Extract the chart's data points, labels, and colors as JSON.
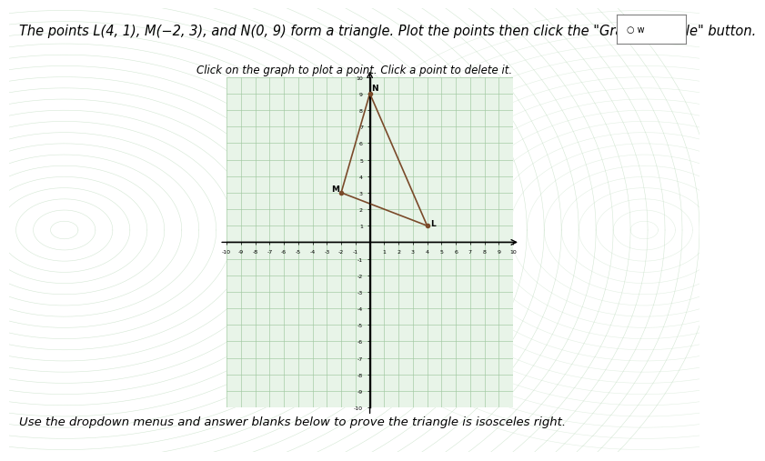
{
  "title_line1": "The points L(4, 1), M(",
  "title_math": "−2, 3)",
  "title_line2": ", and N(0, 9) form a triangle. Plot the points then click the \"Graph Triangle\" button.",
  "subtitle": "Click on the graph to plot a point. Click a point to delete it.",
  "footer": "Use the dropdown menus and answer blanks below to prove the triangle is isosceles right.",
  "points": {
    "L": [
      4,
      1
    ],
    "M": [
      -2,
      3
    ],
    "N": [
      0,
      9
    ]
  },
  "triangle_color": "#7a4a2a",
  "point_color": "#7a4a2a",
  "axis_range": [
    -10,
    10
  ],
  "grid_major_color": "#a0c8a0",
  "grid_minor_color": "#c8e8c8",
  "graph_bg": "#e8f4e8",
  "outer_bg": "#cde8cd",
  "title_fontsize": 10.5,
  "subtitle_fontsize": 8.5,
  "footer_fontsize": 9.5,
  "label_offsets": {
    "L": [
      0.25,
      0.0
    ],
    "M": [
      -0.7,
      0.1
    ],
    "N": [
      0.1,
      0.2
    ]
  }
}
